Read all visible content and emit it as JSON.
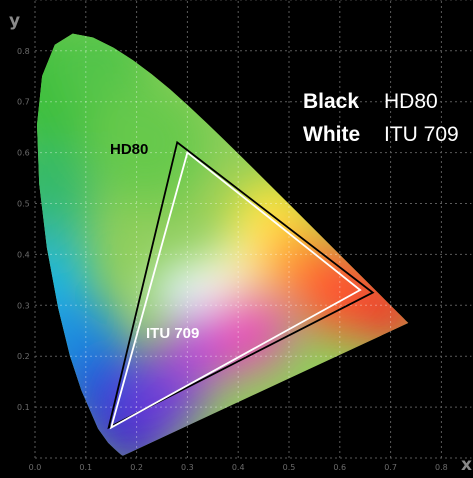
{
  "chart_data": {
    "type": "scatter",
    "title": "",
    "xlabel": "x",
    "ylabel": "y",
    "xlim": [
      0,
      0.8
    ],
    "ylim": [
      0,
      0.9
    ],
    "xticks": [
      "0.0",
      "0.1",
      "0.2",
      "0.3",
      "0.4",
      "0.5",
      "0.6",
      "0.7",
      "0.8"
    ],
    "yticks": [
      "0.1",
      "0.2",
      "0.3",
      "0.4",
      "0.5",
      "0.6",
      "0.7",
      "0.8"
    ],
    "grid": true,
    "legend": [
      {
        "key": "Black",
        "value": "HD80",
        "color": "#000000"
      },
      {
        "key": "White",
        "value": "ITU 709",
        "color": "#ffffff"
      }
    ],
    "series": [
      {
        "name": "HD80",
        "color": "#000000",
        "label": "HD80",
        "points": [
          [
            0.28,
            0.62
          ],
          [
            0.665,
            0.325
          ],
          [
            0.145,
            0.06
          ]
        ]
      },
      {
        "name": "ITU 709",
        "color": "#ffffff",
        "label": "ITU 709",
        "points": [
          [
            0.3,
            0.6
          ],
          [
            0.64,
            0.33
          ],
          [
            0.15,
            0.06
          ]
        ]
      }
    ],
    "spectral_locus": [
      [
        0.1741,
        0.005
      ],
      [
        0.1738,
        0.0049
      ],
      [
        0.1733,
        0.0048
      ],
      [
        0.1726,
        0.0048
      ],
      [
        0.1714,
        0.0051
      ],
      [
        0.1689,
        0.0069
      ],
      [
        0.1644,
        0.0109
      ],
      [
        0.1566,
        0.0177
      ],
      [
        0.144,
        0.0297
      ],
      [
        0.1241,
        0.0578
      ],
      [
        0.0913,
        0.1327
      ],
      [
        0.0687,
        0.2007
      ],
      [
        0.0454,
        0.295
      ],
      [
        0.0235,
        0.4127
      ],
      [
        0.0082,
        0.5384
      ],
      [
        0.0039,
        0.6548
      ],
      [
        0.0139,
        0.7502
      ],
      [
        0.0389,
        0.812
      ],
      [
        0.0743,
        0.8338
      ],
      [
        0.1142,
        0.8262
      ],
      [
        0.1547,
        0.8059
      ],
      [
        0.1929,
        0.7816
      ],
      [
        0.2296,
        0.7543
      ],
      [
        0.2658,
        0.7243
      ],
      [
        0.3016,
        0.6923
      ],
      [
        0.3373,
        0.6589
      ],
      [
        0.3731,
        0.6245
      ],
      [
        0.4087,
        0.5896
      ],
      [
        0.4441,
        0.5547
      ],
      [
        0.4788,
        0.5202
      ],
      [
        0.5125,
        0.4866
      ],
      [
        0.5448,
        0.4544
      ],
      [
        0.5752,
        0.4242
      ],
      [
        0.6029,
        0.3965
      ],
      [
        0.627,
        0.3725
      ],
      [
        0.6482,
        0.3514
      ],
      [
        0.6658,
        0.334
      ],
      [
        0.6801,
        0.3197
      ],
      [
        0.6915,
        0.3083
      ],
      [
        0.7006,
        0.2993
      ],
      [
        0.7079,
        0.292
      ],
      [
        0.714,
        0.2859
      ],
      [
        0.719,
        0.2809
      ],
      [
        0.723,
        0.277
      ],
      [
        0.726,
        0.274
      ],
      [
        0.7283,
        0.2717
      ],
      [
        0.73,
        0.27
      ],
      [
        0.7311,
        0.2689
      ],
      [
        0.732,
        0.268
      ],
      [
        0.7327,
        0.2673
      ],
      [
        0.7334,
        0.2666
      ],
      [
        0.734,
        0.266
      ],
      [
        0.7344,
        0.2656
      ],
      [
        0.7346,
        0.2654
      ],
      [
        0.7347,
        0.2653
      ]
    ]
  }
}
